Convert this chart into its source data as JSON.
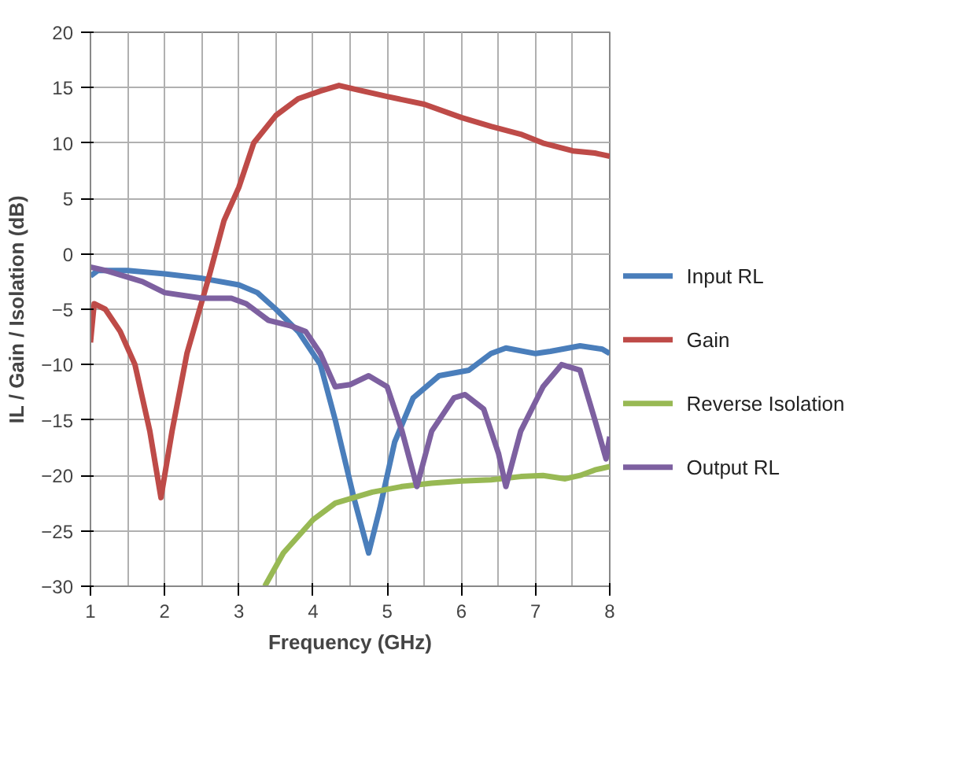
{
  "chart_data": {
    "type": "line",
    "xlabel": "Frequency (GHz)",
    "ylabel": "IL / Gain / Isolation (dB)",
    "xlim": [
      1,
      8
    ],
    "ylim": [
      -30,
      20
    ],
    "xticks": [
      1,
      2,
      3,
      4,
      5,
      6,
      7,
      8
    ],
    "yticks": [
      -30,
      -25,
      -20,
      -15,
      -10,
      -5,
      0,
      5,
      10,
      15,
      20
    ],
    "grid": true,
    "legend": "right",
    "marker": "none",
    "line_style": "solid",
    "series": [
      {
        "name": "Input RL",
        "color": "#4a7ebb",
        "x": [
          1,
          1.1,
          1.5,
          2,
          2.5,
          3,
          3.25,
          3.5,
          3.8,
          4.1,
          4.3,
          4.55,
          4.75,
          4.9,
          5.1,
          5.35,
          5.7,
          6.1,
          6.4,
          6.6,
          7,
          7.2,
          7.6,
          7.9,
          8
        ],
        "values": [
          -2,
          -1.5,
          -1.5,
          -1.8,
          -2.2,
          -2.8,
          -3.5,
          -5,
          -7,
          -10,
          -15,
          -22,
          -27,
          -23,
          -17,
          -13,
          -11,
          -10.5,
          -9,
          -8.5,
          -9,
          -8.8,
          -8.3,
          -8.6,
          -9
        ]
      },
      {
        "name": "Gain",
        "color": "#be4b48",
        "x": [
          1,
          1.05,
          1.2,
          1.4,
          1.6,
          1.8,
          1.95,
          2.1,
          2.3,
          2.6,
          2.8,
          3,
          3.2,
          3.5,
          3.8,
          4.1,
          4.35,
          4.6,
          5,
          5.5,
          6,
          6.4,
          6.8,
          7.1,
          7.5,
          7.8,
          8
        ],
        "values": [
          -8,
          -4.5,
          -5,
          -7,
          -10,
          -16,
          -22,
          -16,
          -9,
          -2,
          3,
          6,
          10,
          12.5,
          14,
          14.7,
          15.2,
          14.8,
          14.2,
          13.5,
          12.3,
          11.5,
          10.8,
          10,
          9.3,
          9.1,
          8.8
        ]
      },
      {
        "name": "Reverse Isolation",
        "color": "#98b954",
        "x": [
          3.35,
          3.6,
          4,
          4.3,
          4.8,
          5.2,
          5.6,
          6,
          6.4,
          6.8,
          7.1,
          7.4,
          7.6,
          7.8,
          8
        ],
        "values": [
          -30,
          -27,
          -24,
          -22.5,
          -21.5,
          -21,
          -20.7,
          -20.5,
          -20.4,
          -20.1,
          -20,
          -20.3,
          -20,
          -19.5,
          -19.2
        ]
      },
      {
        "name": "Output RL",
        "color": "#7d60a0",
        "x": [
          1,
          1.2,
          1.7,
          2,
          2.5,
          2.9,
          3.1,
          3.4,
          3.7,
          3.9,
          4.1,
          4.3,
          4.5,
          4.75,
          5,
          5.2,
          5.4,
          5.6,
          5.9,
          6.05,
          6.3,
          6.5,
          6.6,
          6.8,
          7.1,
          7.35,
          7.6,
          7.8,
          7.95,
          8
        ],
        "values": [
          -1.2,
          -1.5,
          -2.5,
          -3.5,
          -4,
          -4,
          -4.5,
          -6,
          -6.5,
          -7,
          -9,
          -12,
          -11.8,
          -11,
          -12,
          -16,
          -21,
          -16,
          -13,
          -12.7,
          -14,
          -18,
          -21,
          -16,
          -12,
          -10,
          -10.5,
          -15,
          -18.5,
          -16.5
        ]
      }
    ]
  }
}
